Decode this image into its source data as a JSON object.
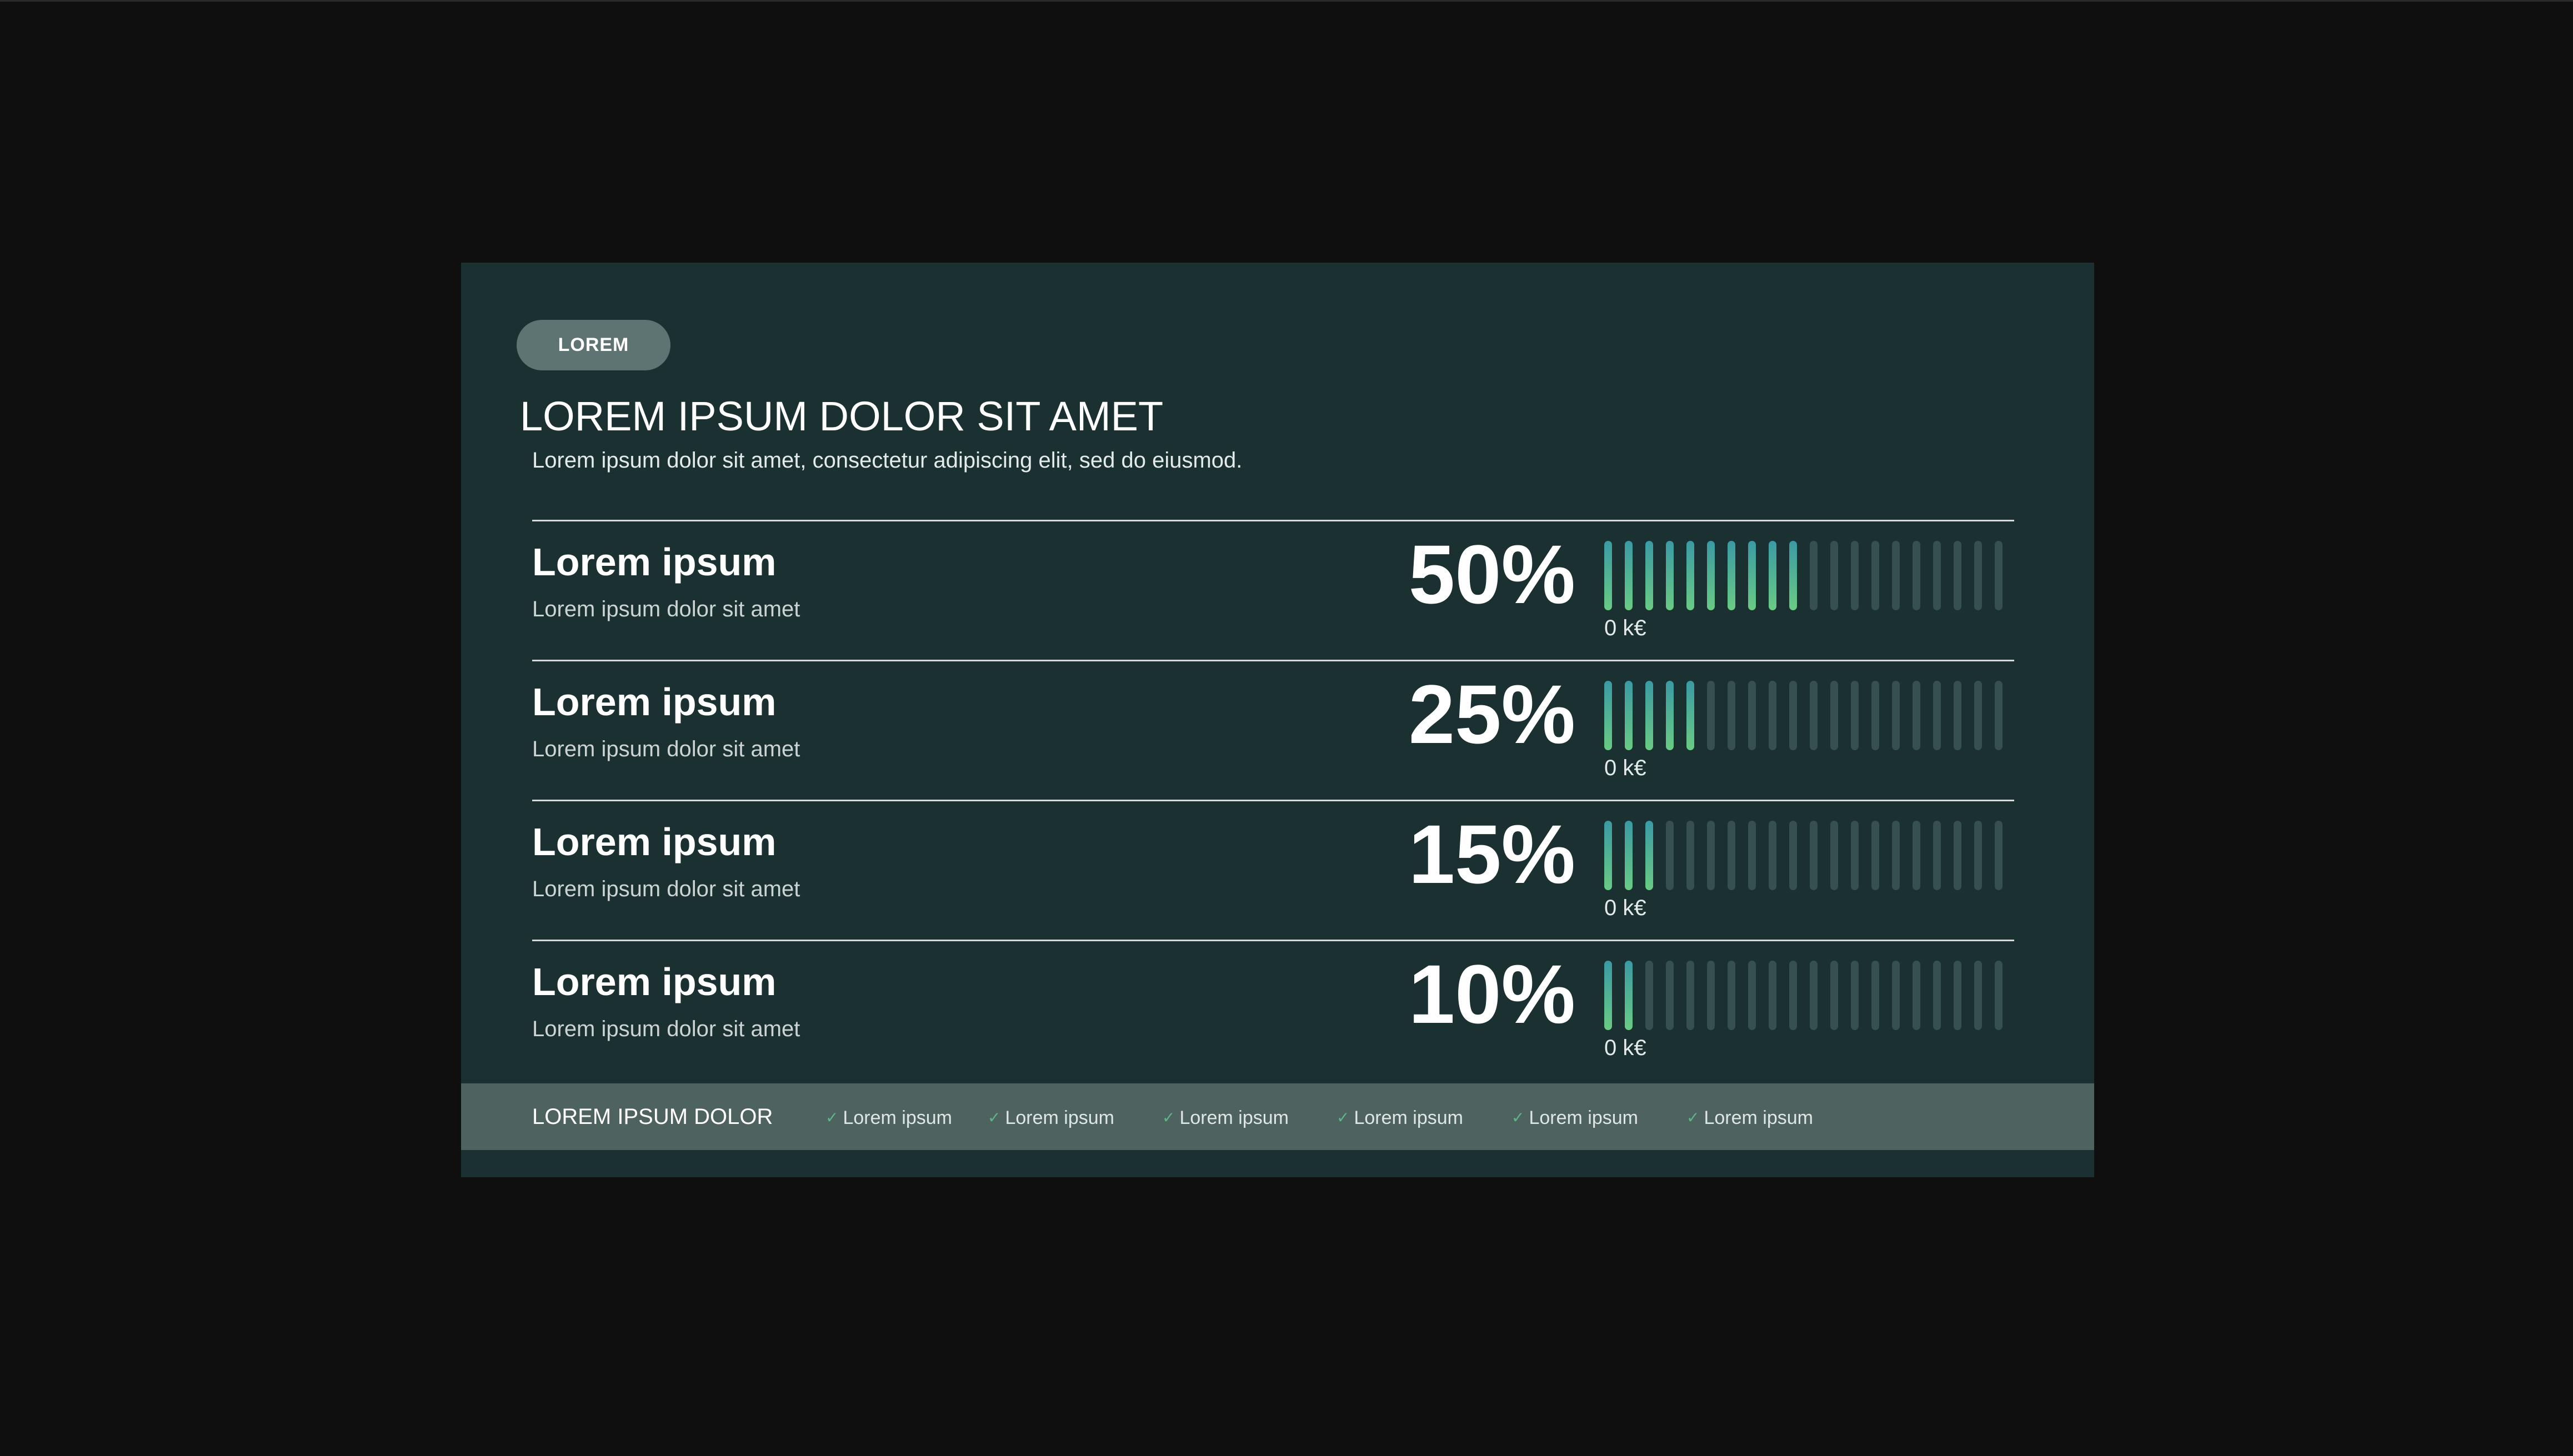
{
  "header": {
    "pill_label": "LOREM",
    "title": "LOREM IPSUM DOLOR SIT AMET",
    "subtitle": "Lorem ipsum dolor sit amet, consectetur adipiscing elit, sed do eiusmod."
  },
  "rows": [
    {
      "label": "Lorem ipsum",
      "description": "Lorem ipsum dolor sit amet",
      "percent_text": "50%",
      "value": 50,
      "amount": "0 k€"
    },
    {
      "label": "Lorem ipsum",
      "description": "Lorem ipsum dolor sit amet",
      "percent_text": "25%",
      "value": 25,
      "amount": "0 k€"
    },
    {
      "label": "Lorem ipsum",
      "description": "Lorem ipsum dolor sit amet",
      "percent_text": "15%",
      "value": 15,
      "amount": "0 k€"
    },
    {
      "label": "Lorem ipsum",
      "description": "Lorem ipsum dolor sit amet",
      "percent_text": "10%",
      "value": 10,
      "amount": "0 k€"
    }
  ],
  "bar_segments_total": 20,
  "footer": {
    "label": "LOREM IPSUM DOLOR",
    "items": [
      {
        "icon": "check-icon",
        "label": "Lorem ipsum"
      },
      {
        "icon": "check-icon",
        "label": "Lorem ipsum"
      },
      {
        "icon": "check-icon",
        "label": "Lorem ipsum"
      },
      {
        "icon": "check-icon",
        "label": "Lorem ipsum"
      },
      {
        "icon": "check-icon",
        "label": "Lorem ipsum"
      },
      {
        "icon": "check-icon",
        "label": "Lorem ipsum"
      }
    ]
  },
  "colors": {
    "page_background": "#0f0f0f",
    "card_background": "#1b3131",
    "pill_background": "#5e7472",
    "footer_background": "#4e625f",
    "bar_inactive": "#35504e",
    "bar_active_top": "#3a9aa4",
    "bar_active_bottom": "#6acb84",
    "check": "#5db58a"
  }
}
